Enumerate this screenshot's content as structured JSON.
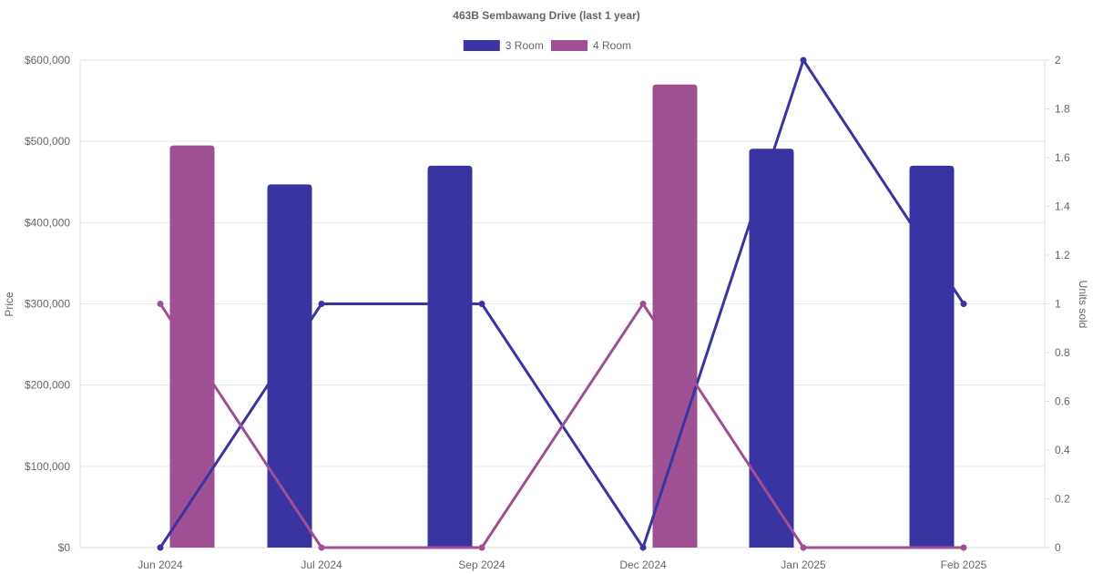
{
  "chart_data": {
    "type": "bar",
    "title": "463B Sembawang Drive (last 1 year)",
    "categories": [
      "Jun 2024",
      "Jul 2024",
      "Sep 2024",
      "Dec 2024",
      "Jan 2025",
      "Feb 2025"
    ],
    "y_left": {
      "label": "Price",
      "min": 0,
      "max": 600000,
      "ticks": [
        "$0",
        "$100,000",
        "$200,000",
        "$300,000",
        "$400,000",
        "$500,000",
        "$600,000"
      ]
    },
    "y_right": {
      "label": "Units sold",
      "min": 0,
      "max": 2,
      "ticks": [
        "0",
        "0.2",
        "0.4",
        "0.6",
        "0.8",
        "1",
        "1.2",
        "1.4",
        "1.6",
        "1.8",
        "2"
      ]
    },
    "series": [
      {
        "name": "3 Room",
        "color": "#3a34a2",
        "price": [
          null,
          447000,
          470000,
          null,
          491000,
          470000
        ],
        "units": [
          0,
          1,
          1,
          0,
          2,
          1
        ]
      },
      {
        "name": "4 Room",
        "color": "#9f5094",
        "price": [
          495000,
          null,
          null,
          570000,
          null,
          null
        ],
        "units": [
          1,
          0,
          0,
          1,
          0,
          0
        ]
      }
    ],
    "grid": true,
    "legend": "top-center"
  }
}
